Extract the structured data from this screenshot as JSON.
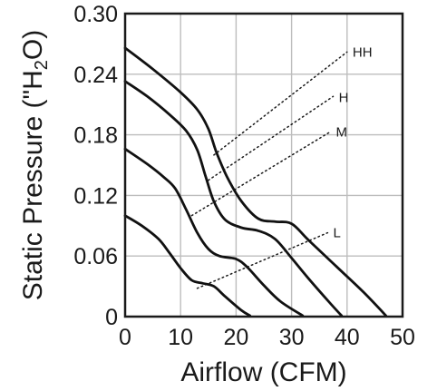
{
  "chart_data": {
    "type": "line",
    "xlabel": "Airflow (CFM)",
    "ylabel_prefix": "Static Pressure (\"H",
    "ylabel_sub": "2",
    "ylabel_suffix": "O)",
    "xlim": [
      0,
      50
    ],
    "ylim": [
      0,
      0.3
    ],
    "x_ticks": [
      0,
      10,
      20,
      30,
      40,
      50
    ],
    "x_tick_labels": [
      "0",
      "10",
      "20",
      "30",
      "40",
      "50"
    ],
    "y_ticks": [
      0,
      0.06,
      0.12,
      0.18,
      0.24,
      0.3
    ],
    "y_tick_labels": [
      "0",
      "0.06",
      "0.12",
      "0.18",
      "0.24",
      "0.30"
    ],
    "grid": true,
    "series": [
      {
        "name": "HH",
        "points": [
          [
            0,
            0.266
          ],
          [
            5,
            0.245
          ],
          [
            10,
            0.222
          ],
          [
            13,
            0.205
          ],
          [
            15,
            0.186
          ],
          [
            16.5,
            0.162
          ],
          [
            18.5,
            0.137
          ],
          [
            21,
            0.114
          ],
          [
            24,
            0.097
          ],
          [
            27,
            0.094
          ],
          [
            30,
            0.092
          ],
          [
            33,
            0.076
          ],
          [
            38,
            0.05
          ],
          [
            43,
            0.024
          ],
          [
            47,
            0.001
          ]
        ]
      },
      {
        "name": "H",
        "points": [
          [
            0,
            0.233
          ],
          [
            4,
            0.218
          ],
          [
            8,
            0.2
          ],
          [
            11,
            0.184
          ],
          [
            13,
            0.165
          ],
          [
            14.5,
            0.139
          ],
          [
            16,
            0.114
          ],
          [
            18,
            0.096
          ],
          [
            21,
            0.088
          ],
          [
            24,
            0.085
          ],
          [
            27,
            0.077
          ],
          [
            30,
            0.058
          ],
          [
            33,
            0.038
          ],
          [
            37,
            0.013
          ],
          [
            39,
            0.001
          ]
        ]
      },
      {
        "name": "M",
        "points": [
          [
            0,
            0.166
          ],
          [
            4,
            0.151
          ],
          [
            7,
            0.138
          ],
          [
            9,
            0.127
          ],
          [
            11,
            0.106
          ],
          [
            13,
            0.083
          ],
          [
            15,
            0.067
          ],
          [
            17,
            0.06
          ],
          [
            20,
            0.057
          ],
          [
            22,
            0.049
          ],
          [
            25,
            0.031
          ],
          [
            28,
            0.015
          ],
          [
            32,
            0.001
          ]
        ]
      },
      {
        "name": "L",
        "points": [
          [
            0,
            0.1
          ],
          [
            3,
            0.09
          ],
          [
            6,
            0.077
          ],
          [
            8,
            0.063
          ],
          [
            10,
            0.048
          ],
          [
            12,
            0.036
          ],
          [
            14,
            0.033
          ],
          [
            16,
            0.03
          ],
          [
            18,
            0.02
          ],
          [
            21,
            0.006
          ],
          [
            22.5,
            0.001
          ]
        ]
      }
    ],
    "labels": [
      {
        "text": "HH",
        "x": 41,
        "y": 0.262
      },
      {
        "text": "H",
        "x": 38.5,
        "y": 0.217
      },
      {
        "text": "M",
        "x": 38,
        "y": 0.183
      },
      {
        "text": "L",
        "x": 37.5,
        "y": 0.083
      }
    ],
    "leader_lines": [
      {
        "series": "HH",
        "from": [
          16,
          0.16
        ],
        "to": [
          40,
          0.262
        ]
      },
      {
        "series": "H",
        "from": [
          15,
          0.135
        ],
        "to": [
          37.5,
          0.218
        ]
      },
      {
        "series": "M",
        "from": [
          12,
          0.1
        ],
        "to": [
          37,
          0.183
        ]
      },
      {
        "series": "L",
        "from": [
          13,
          0.028
        ],
        "to": [
          36.5,
          0.083
        ]
      }
    ]
  }
}
